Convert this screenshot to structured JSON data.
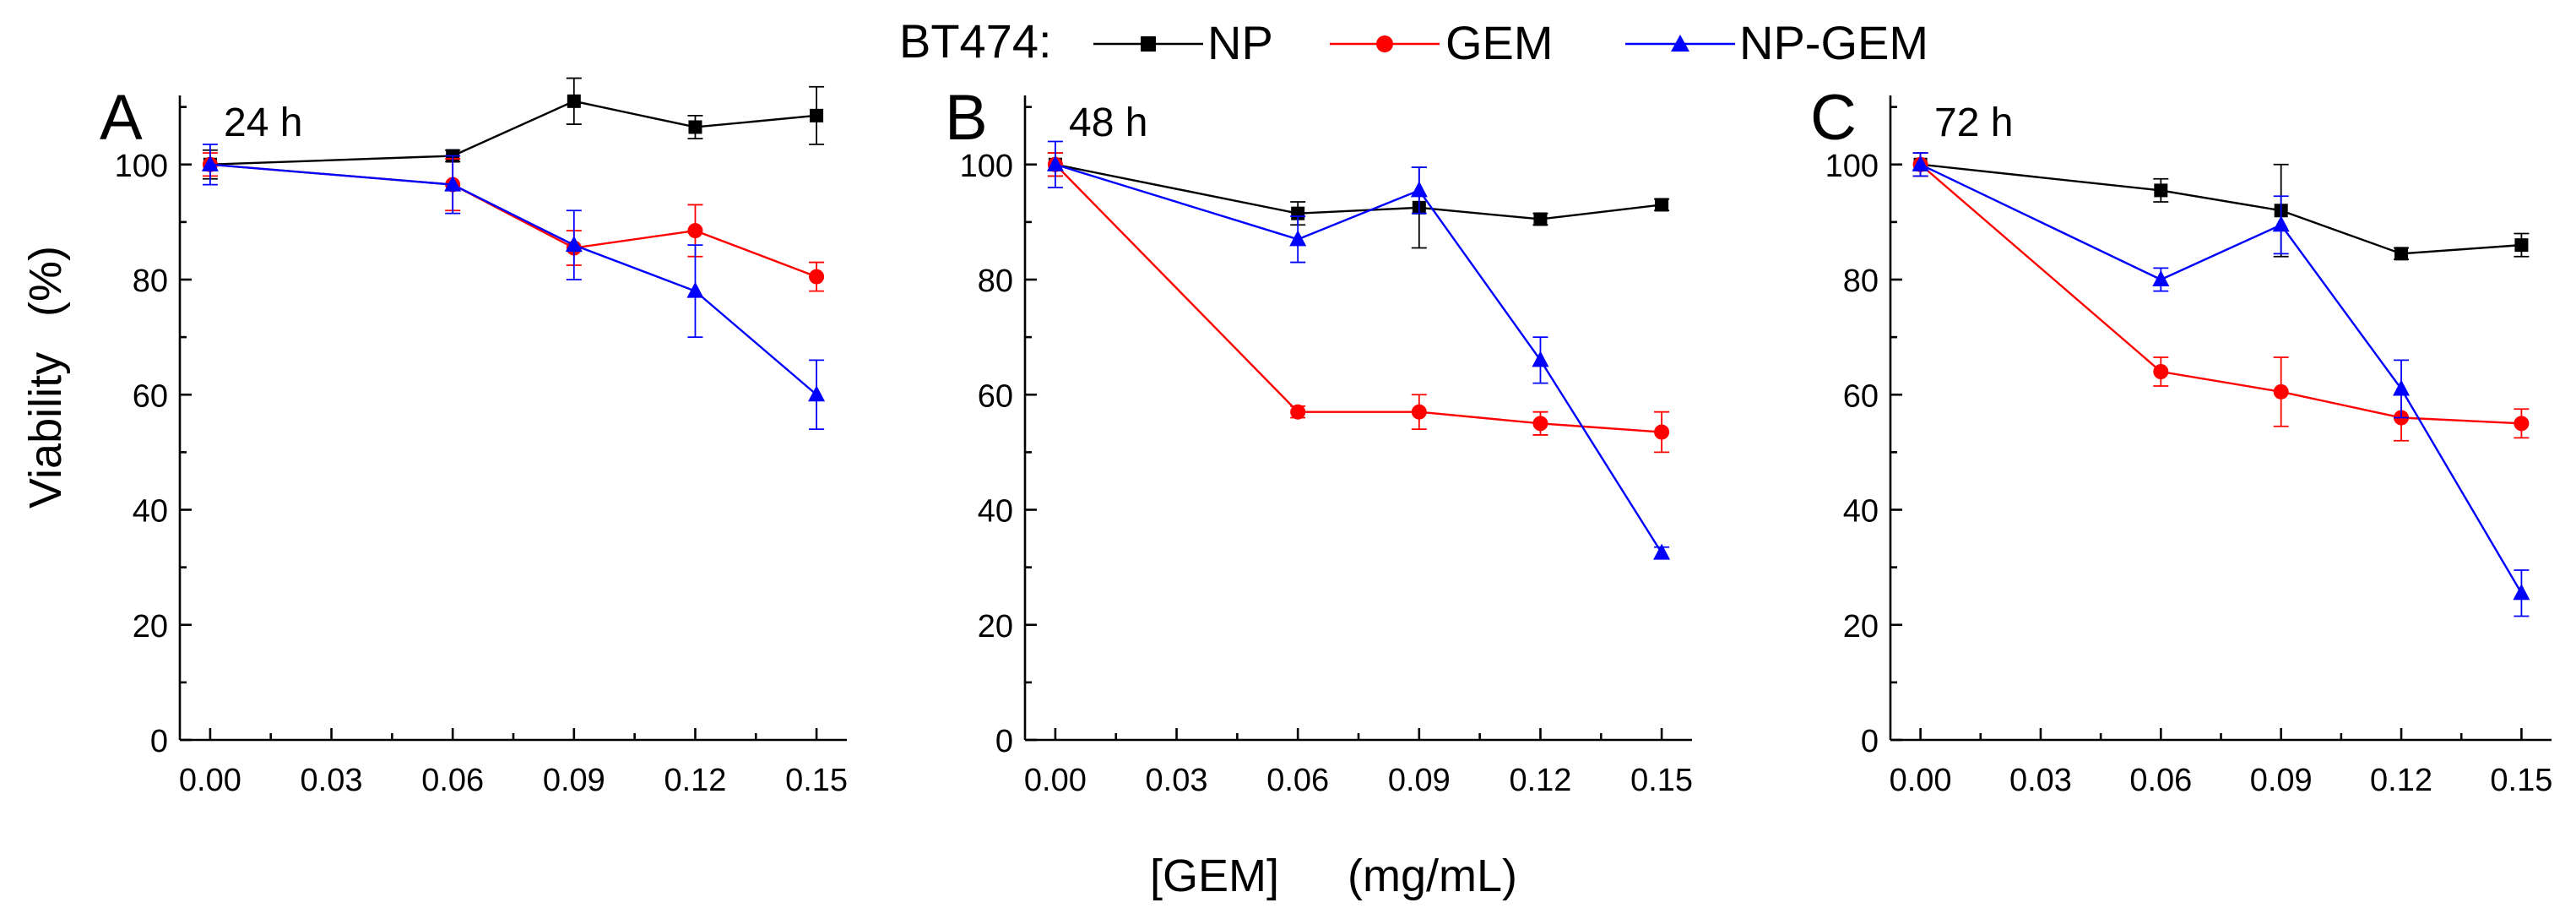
{
  "legend": {
    "prefix": "BT474:",
    "entries": [
      {
        "label": "NP",
        "color": "#000000",
        "marker": "square"
      },
      {
        "label": "GEM",
        "color": "#ff0000",
        "marker": "circle"
      },
      {
        "label": "NP-GEM",
        "color": "#0000ff",
        "marker": "triangle"
      }
    ]
  },
  "ylabel_text": "Viability",
  "ylabel_unit": "(%)",
  "xlabel_text": "[GEM]",
  "xlabel_unit": "(mg/mL)",
  "chart_data": [
    {
      "type": "line",
      "panel_letter": "A",
      "title": "24 h",
      "x": [
        0.0,
        0.06,
        0.09,
        0.12,
        0.15
      ],
      "x_tick_labels": [
        "0.00",
        "0.03",
        "0.06",
        "0.09",
        "0.12",
        "0.15"
      ],
      "y_tick_labels": [
        "0",
        "20",
        "40",
        "60",
        "80",
        "100"
      ],
      "xlim": [
        -0.0075,
        0.1575
      ],
      "ylim": [
        0,
        112
      ],
      "series": [
        {
          "name": "NP",
          "color": "#000000",
          "marker": "square",
          "values": [
            100,
            101.5,
            111,
            106.5,
            108.5
          ],
          "errors": [
            2.5,
            1,
            4,
            2,
            5
          ]
        },
        {
          "name": "GEM",
          "color": "#ff0000",
          "marker": "circle",
          "values": [
            100,
            96.5,
            85.5,
            88.5,
            80.5
          ],
          "errors": [
            2,
            4.5,
            3,
            4.5,
            2.5
          ]
        },
        {
          "name": "NP-GEM",
          "color": "#0000ff",
          "marker": "triangle",
          "values": [
            100,
            96.5,
            86,
            78,
            60
          ],
          "errors": [
            3.5,
            5,
            6,
            8,
            6
          ]
        }
      ]
    },
    {
      "type": "line",
      "panel_letter": "B",
      "title": "48 h",
      "x": [
        0.0,
        0.06,
        0.09,
        0.12,
        0.15
      ],
      "x_tick_labels": [
        "0.00",
        "0.03",
        "0.06",
        "0.09",
        "0.12",
        "0.15"
      ],
      "y_tick_labels": [
        "0",
        "20",
        "40",
        "60",
        "80",
        "100"
      ],
      "xlim": [
        -0.0075,
        0.1575
      ],
      "ylim": [
        0,
        112
      ],
      "series": [
        {
          "name": "NP",
          "color": "#000000",
          "marker": "square",
          "values": [
            100,
            91.5,
            92.5,
            90.5,
            93
          ],
          "errors": [
            2,
            2,
            7,
            1,
            1
          ]
        },
        {
          "name": "GEM",
          "color": "#ff0000",
          "marker": "circle",
          "values": [
            100,
            57,
            57,
            55,
            53.5
          ],
          "errors": [
            2,
            1,
            3,
            2,
            3.5
          ]
        },
        {
          "name": "NP-GEM",
          "color": "#0000ff",
          "marker": "triangle",
          "values": [
            100,
            87,
            95.5,
            66,
            32.5
          ],
          "errors": [
            4,
            4,
            4,
            4,
            1
          ]
        }
      ]
    },
    {
      "type": "line",
      "panel_letter": "C",
      "title": "72 h",
      "x": [
        0.0,
        0.06,
        0.09,
        0.12,
        0.15
      ],
      "x_tick_labels": [
        "0.00",
        "0.03",
        "0.06",
        "0.09",
        "0.12",
        "0.15"
      ],
      "y_tick_labels": [
        "0",
        "20",
        "40",
        "60",
        "80",
        "100"
      ],
      "xlim": [
        -0.0075,
        0.1575
      ],
      "ylim": [
        0,
        112
      ],
      "series": [
        {
          "name": "NP",
          "color": "#000000",
          "marker": "square",
          "values": [
            100,
            95.5,
            92,
            84.5,
            86
          ],
          "errors": [
            2,
            2,
            8,
            1,
            2
          ]
        },
        {
          "name": "GEM",
          "color": "#ff0000",
          "marker": "circle",
          "values": [
            100,
            64,
            60.5,
            56,
            55
          ],
          "errors": [
            2,
            2.5,
            6,
            4,
            2.5
          ]
        },
        {
          "name": "NP-GEM",
          "color": "#0000ff",
          "marker": "triangle",
          "values": [
            100,
            80,
            89.5,
            61,
            25.5
          ],
          "errors": [
            2,
            2,
            5,
            5,
            4
          ]
        }
      ]
    }
  ]
}
